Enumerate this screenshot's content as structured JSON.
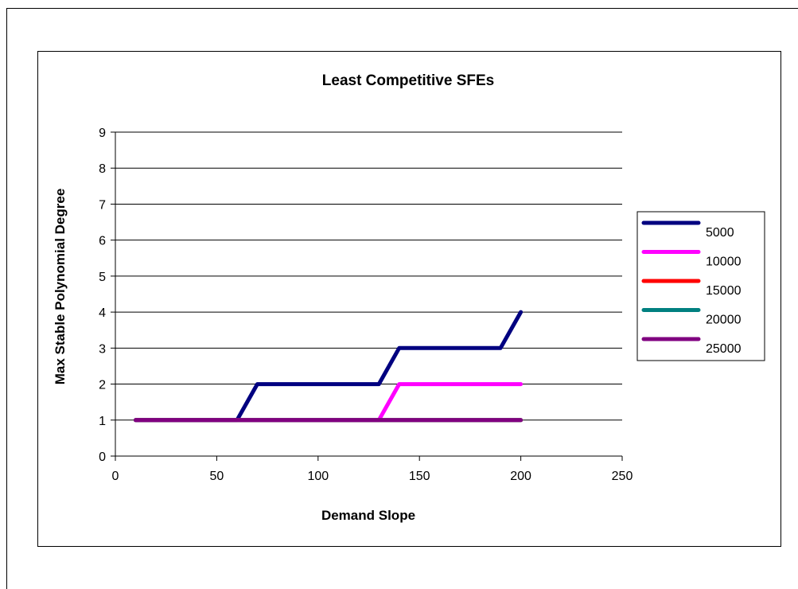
{
  "chart_data": {
    "type": "line",
    "title": "Least Competitive SFEs",
    "xlabel": "Demand Slope",
    "ylabel": "Max Stable Polynomial Degree",
    "xlim": [
      0,
      250
    ],
    "ylim": [
      0,
      9
    ],
    "x_ticks": [
      "0",
      "50",
      "100",
      "150",
      "200",
      "250"
    ],
    "y_ticks": [
      "0",
      "1",
      "2",
      "3",
      "4",
      "5",
      "6",
      "7",
      "8",
      "9"
    ],
    "grid": "horizontal major gridlines",
    "legend_position": "right",
    "x": [
      10,
      20,
      30,
      40,
      50,
      60,
      70,
      80,
      90,
      100,
      110,
      120,
      130,
      140,
      150,
      160,
      170,
      180,
      190,
      200
    ],
    "series": [
      {
        "name": "5000",
        "color": "#000080",
        "values": [
          1,
          1,
          1,
          1,
          1,
          1,
          2,
          2,
          2,
          2,
          2,
          2,
          2,
          3,
          3,
          3,
          3,
          3,
          3,
          4
        ]
      },
      {
        "name": "10000",
        "color": "#ff00ff",
        "values": [
          1,
          1,
          1,
          1,
          1,
          1,
          1,
          1,
          1,
          1,
          1,
          1,
          1,
          2,
          2,
          2,
          2,
          2,
          2,
          2
        ]
      },
      {
        "name": "15000",
        "color": "#ff0000",
        "values": [
          1,
          1,
          1,
          1,
          1,
          1,
          1,
          1,
          1,
          1,
          1,
          1,
          1,
          1,
          1,
          1,
          1,
          1,
          1,
          1
        ]
      },
      {
        "name": "20000",
        "color": "#008080",
        "values": [
          1,
          1,
          1,
          1,
          1,
          1,
          1,
          1,
          1,
          1,
          1,
          1,
          1,
          1,
          1,
          1,
          1,
          1,
          1,
          1
        ]
      },
      {
        "name": "25000",
        "color": "#800080",
        "values": [
          1,
          1,
          1,
          1,
          1,
          1,
          1,
          1,
          1,
          1,
          1,
          1,
          1,
          1,
          1,
          1,
          1,
          1,
          1,
          1
        ]
      }
    ]
  }
}
